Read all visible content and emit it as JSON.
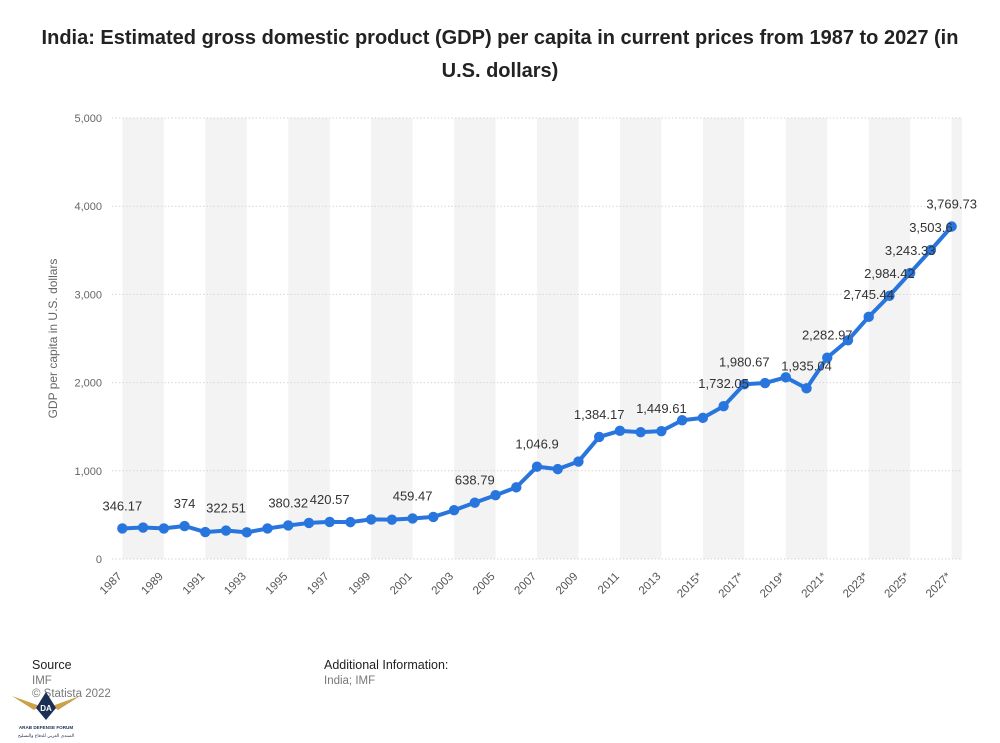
{
  "title": "India: Estimated gross domestic product (GDP) per capita in current prices from 1987 to 2027 (in U.S. dollars)",
  "footer": {
    "source_heading": "Source",
    "source_lines": [
      "IMF",
      "© Statista 2022"
    ],
    "additional_heading": "Additional Information:",
    "additional_text": "India; IMF"
  },
  "watermark": {
    "text_line1": "ARAB DEFENSE FORUM",
    "text_line2": "المنتدى العربي للدفاع والتسليح",
    "mark": "DA"
  },
  "chart_data": {
    "type": "line",
    "title": "India: Estimated gross domestic product (GDP) per capita in current prices from 1987 to 2027 (in U.S. dollars)",
    "ylabel": "GDP per capita in U.S. dollars",
    "xlabel": "",
    "ylim": [
      0,
      5000
    ],
    "yticks": [
      0,
      1000,
      2000,
      3000,
      4000,
      5000
    ],
    "ytick_labels": [
      "0",
      "1,000",
      "2,000",
      "3,000",
      "4,000",
      "5,000"
    ],
    "grid": true,
    "color": "#2876dd",
    "categories": [
      "1987",
      "1988",
      "1989",
      "1990",
      "1991",
      "1992",
      "1993",
      "1994",
      "1995",
      "1996",
      "1997",
      "1998",
      "1999",
      "2000",
      "2001",
      "2002",
      "2003",
      "2004",
      "2005",
      "2006",
      "2007",
      "2008",
      "2009",
      "2010",
      "2011",
      "2012",
      "2013",
      "2014",
      "2015*",
      "2016*",
      "2017*",
      "2018*",
      "2019*",
      "2020*",
      "2021*",
      "2022*",
      "2023*",
      "2024*",
      "2025*",
      "2026*",
      "2027*"
    ],
    "xtick_labels": [
      "1987",
      "1989",
      "1991",
      "1993",
      "1995",
      "1997",
      "1999",
      "2001",
      "2003",
      "2005",
      "2007",
      "2009",
      "2011",
      "2013",
      "2015*",
      "2017*",
      "2019*",
      "2021*",
      "2023*",
      "2025*",
      "2027*"
    ],
    "values": [
      346.17,
      357,
      347,
      374,
      305,
      322.51,
      302,
      346,
      380.32,
      409,
      420.57,
      418,
      449,
      446,
      459.47,
      477,
      553,
      638.79,
      723,
      812,
      1046.9,
      1019,
      1105,
      1384.17,
      1453,
      1438,
      1449.61,
      1573,
      1600,
      1732.05,
      1980.67,
      1995,
      2060,
      1935.04,
      2282.97,
      2480,
      2745.44,
      2984.42,
      3243.33,
      3503.6,
      3769.73
    ],
    "data_labels": {
      "1987": "346.17",
      "1990": "374",
      "1992": "322.51",
      "1995": "380.32",
      "1997": "420.57",
      "2001": "459.47",
      "2004": "638.79",
      "2007": "1,046.9",
      "2010": "1,384.17",
      "2013": "1,449.61",
      "2016*": "1,732.05",
      "2017*": "1,980.67",
      "2020*": "1,935.04",
      "2021*": "2,282.97",
      "2023*": "2,745.44",
      "2024*": "2,984.42",
      "2025*": "3,243.33",
      "2026*": "3,503.6",
      "2027*": "3,769.73"
    }
  }
}
